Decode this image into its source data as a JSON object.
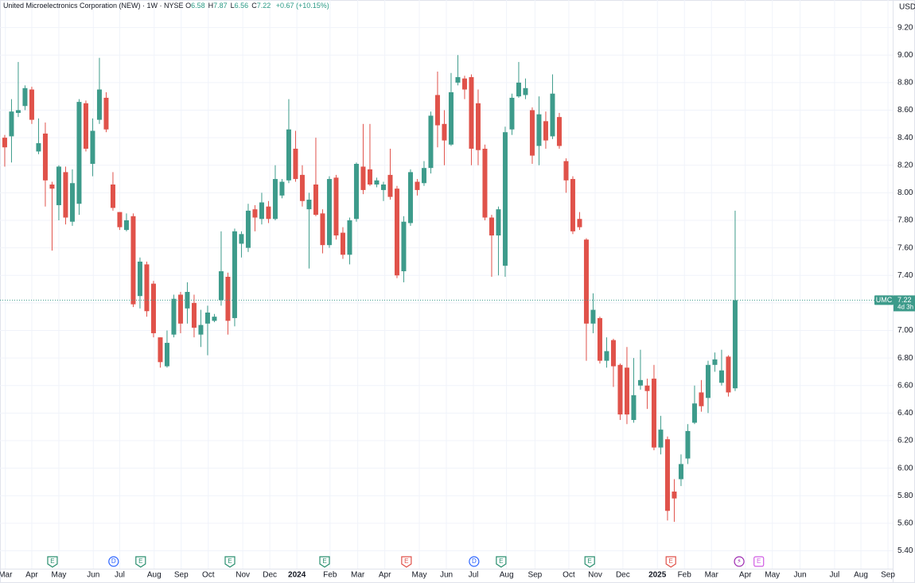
{
  "chart_data": {
    "type": "candlestick",
    "title": "United Microelectronics Corporation (NEW) · 1W · NYSE",
    "ohlc_labels": [
      "O",
      "H",
      "L",
      "C"
    ],
    "change_label": "+0.67 (+10.15%)",
    "currency": "USD",
    "symbol": "UMC",
    "countdown": "4d 3h",
    "up_color": "#3d9b8b",
    "down_color": "#e0524a",
    "grid": true,
    "last_price_line": true,
    "open": [
      8.4,
      8.41,
      8.58,
      8.63,
      8.75,
      8.3,
      8.43,
      8.06,
      7.91,
      8.15,
      7.79,
      7.92,
      8.65,
      8.21,
      8.53,
      8.69,
      8.06,
      7.86,
      7.73,
      7.83,
      7.25,
      7.48,
      7.34,
      6.95,
      6.74,
      6.97,
      7.26,
      7.16,
      7.2,
      6.97,
      7.05,
      7.07,
      7.22,
      7.39,
      7.09,
      7.63,
      7.6,
      7.88,
      7.81,
      7.9,
      7.81,
      7.98,
      8.09,
      8.32,
      8.13,
      7.88,
      8.06,
      7.85,
      7.62,
      8.11,
      7.71,
      7.55,
      7.81,
      8.19,
      8.17,
      8.06,
      8.02,
      8.13,
      8.03,
      7.43,
      7.78,
      8.08,
      8.07,
      8.18,
      8.71,
      8.5,
      8.35,
      8.8,
      8.83,
      8.84,
      8.65,
      8.32,
      7.82,
      7.69,
      7.47,
      8.46,
      8.7,
      8.71,
      8.6,
      8.34,
      8.52,
      8.41,
      8.55,
      8.23,
      8.1,
      7.81,
      7.66,
      7.05,
      7.09,
      6.78,
      6.93,
      6.75,
      6.73,
      6.35,
      6.6,
      6.6,
      6.65,
      6.15,
      6.21,
      5.83,
      5.92,
      6.07,
      6.33,
      6.55,
      6.51,
      6.75,
      6.62,
      6.81,
      6.58
    ],
    "high": [
      8.42,
      8.68,
      8.95,
      8.78,
      8.77,
      8.54,
      8.51,
      8.08,
      8.2,
      8.19,
      8.17,
      8.68,
      8.67,
      8.54,
      8.98,
      8.73,
      8.15,
      7.86,
      7.85,
      7.85,
      7.53,
      7.5,
      7.36,
      6.95,
      7.0,
      7.26,
      7.28,
      7.35,
      7.26,
      7.15,
      7.18,
      7.12,
      7.72,
      7.42,
      7.74,
      7.72,
      7.92,
      7.91,
      8.0,
      7.94,
      8.2,
      8.1,
      8.68,
      8.45,
      8.2,
      8.0,
      8.4,
      7.88,
      8.12,
      8.13,
      7.75,
      7.82,
      8.22,
      8.5,
      8.5,
      8.11,
      8.08,
      8.32,
      8.05,
      7.83,
      8.17,
      8.1,
      8.23,
      8.59,
      8.88,
      8.6,
      8.87,
      9.0,
      8.85,
      8.86,
      8.75,
      8.35,
      7.84,
      7.9,
      8.48,
      8.72,
      8.95,
      8.83,
      8.62,
      8.7,
      8.59,
      8.86,
      8.58,
      8.25,
      8.12,
      7.86,
      7.67,
      7.27,
      7.1,
      6.95,
      6.94,
      6.76,
      6.88,
      6.8,
      6.86,
      6.65,
      6.75,
      6.38,
      6.23,
      5.92,
      6.1,
      6.32,
      6.6,
      6.64,
      6.78,
      6.84,
      6.86,
      6.82,
      7.87
    ],
    "low": [
      8.19,
      8.22,
      8.55,
      8.6,
      8.5,
      8.28,
      7.9,
      7.58,
      7.8,
      7.77,
      7.76,
      7.84,
      8.3,
      8.12,
      8.5,
      8.44,
      7.87,
      7.73,
      7.72,
      7.17,
      7.16,
      7.1,
      6.95,
      6.73,
      6.73,
      6.95,
      6.98,
      7.05,
      6.95,
      6.88,
      6.82,
      7.06,
      7.18,
      6.97,
      7.03,
      7.53,
      7.57,
      7.72,
      7.77,
      7.78,
      7.8,
      7.96,
      8.07,
      8.08,
      7.9,
      7.45,
      7.83,
      7.56,
      7.6,
      7.66,
      7.52,
      7.48,
      7.79,
      7.99,
      8.05,
      8.04,
      7.94,
      7.95,
      7.38,
      7.35,
      7.76,
      7.98,
      8.05,
      8.14,
      8.33,
      8.2,
      8.34,
      8.78,
      8.68,
      8.2,
      8.2,
      7.8,
      7.39,
      7.4,
      7.39,
      8.42,
      8.69,
      8.68,
      8.21,
      8.2,
      8.32,
      8.39,
      8.32,
      8.0,
      7.7,
      7.73,
      6.78,
      6.98,
      6.76,
      6.73,
      6.59,
      6.35,
      6.32,
      6.33,
      6.57,
      6.43,
      6.13,
      6.1,
      5.62,
      5.61,
      5.87,
      6.03,
      6.32,
      6.41,
      6.4,
      6.7,
      6.6,
      6.52,
      6.56
    ],
    "close": [
      8.33,
      8.59,
      8.6,
      8.76,
      8.53,
      8.36,
      8.09,
      8.03,
      8.19,
      7.82,
      8.07,
      8.66,
      8.32,
      8.45,
      8.75,
      8.46,
      7.89,
      7.75,
      7.8,
      7.19,
      7.5,
      7.14,
      6.98,
      6.77,
      6.91,
      7.23,
      7.05,
      7.28,
      7.02,
      7.04,
      7.13,
      7.1,
      7.43,
      7.07,
      7.72,
      7.7,
      7.87,
      7.82,
      7.93,
      7.81,
      8.1,
      8.08,
      8.46,
      8.1,
      7.94,
      7.95,
      7.84,
      7.62,
      8.1,
      7.69,
      7.55,
      7.8,
      8.21,
      8.02,
      8.06,
      8.09,
      8.06,
      7.97,
      7.4,
      7.79,
      8.15,
      8.02,
      8.18,
      8.56,
      8.49,
      8.38,
      8.73,
      8.84,
      8.75,
      8.32,
      8.31,
      7.82,
      7.69,
      7.88,
      8.44,
      8.69,
      8.8,
      8.76,
      8.27,
      8.57,
      8.38,
      8.72,
      8.34,
      8.09,
      7.72,
      7.75,
      7.05,
      7.15,
      6.78,
      6.85,
      6.74,
      6.39,
      6.39,
      6.53,
      6.64,
      6.56,
      6.15,
      6.28,
      5.69,
      5.78,
      6.03,
      6.27,
      6.47,
      6.45,
      6.75,
      6.79,
      6.71,
      6.55,
      7.22
    ],
    "ylim": [
      5.27,
      9.4
    ],
    "yticks": [
      {
        "value": 5.4,
        "label": "5.40"
      },
      {
        "value": 5.6,
        "label": "5.60"
      },
      {
        "value": 5.8,
        "label": "5.80"
      },
      {
        "value": 6,
        "label": "6.00"
      },
      {
        "value": 6.2,
        "label": "6.20"
      },
      {
        "value": 6.4,
        "label": "6.40"
      },
      {
        "value": 6.6,
        "label": "6.60"
      },
      {
        "value": 6.8,
        "label": "6.80"
      },
      {
        "value": 7,
        "label": "7.00"
      },
      {
        "value": 7.2,
        "label": "7.20"
      },
      {
        "value": 7.4,
        "label": "7.40"
      },
      {
        "value": 7.6,
        "label": "7.60"
      },
      {
        "value": 7.8,
        "label": "7.80"
      },
      {
        "value": 8,
        "label": "8.00"
      },
      {
        "value": 8.2,
        "label": "8.20"
      },
      {
        "value": 8.4,
        "label": "8.40"
      },
      {
        "value": 8.6,
        "label": "8.60"
      },
      {
        "value": 8.8,
        "label": "8.80"
      },
      {
        "value": 9,
        "label": "9.00"
      },
      {
        "value": 9.2,
        "label": "9.20"
      }
    ],
    "xlim": [
      -0.7,
      131.3
    ],
    "xticks": [
      {
        "value": 0.1,
        "label": "Mar"
      },
      {
        "value": 4,
        "label": "Apr"
      },
      {
        "value": 8,
        "label": "May"
      },
      {
        "value": 13.1,
        "label": "Jun"
      },
      {
        "value": 17,
        "label": "Jul"
      },
      {
        "value": 22.1,
        "label": "Aug"
      },
      {
        "value": 26.1,
        "label": "Sep"
      },
      {
        "value": 30.1,
        "label": "Oct"
      },
      {
        "value": 35.2,
        "label": "Nov"
      },
      {
        "value": 39.2,
        "label": "Dec"
      },
      {
        "value": 43.2,
        "label": "2024",
        "bold": true
      },
      {
        "value": 48.1,
        "label": "Feb"
      },
      {
        "value": 52.2,
        "label": "Mar"
      },
      {
        "value": 56.2,
        "label": "Apr"
      },
      {
        "value": 61.3,
        "label": "May"
      },
      {
        "value": 65.3,
        "label": "Jun"
      },
      {
        "value": 69.3,
        "label": "Jul"
      },
      {
        "value": 74.2,
        "label": "Aug"
      },
      {
        "value": 78.4,
        "label": "Sep"
      },
      {
        "value": 83.4,
        "label": "Oct"
      },
      {
        "value": 87.3,
        "label": "Nov"
      },
      {
        "value": 91.4,
        "label": "Dec"
      },
      {
        "value": 96.5,
        "label": "2025",
        "bold": true
      },
      {
        "value": 100.5,
        "label": "Feb"
      },
      {
        "value": 104.5,
        "label": "Mar"
      },
      {
        "value": 109.5,
        "label": "Apr"
      },
      {
        "value": 113.5,
        "label": "May"
      },
      {
        "value": 117.6,
        "label": "Jun"
      },
      {
        "value": 122.7,
        "label": "Jul"
      },
      {
        "value": 126.6,
        "label": "Aug"
      },
      {
        "value": 130.6,
        "label": "Sep"
      }
    ],
    "events": [
      {
        "label": "E",
        "x": 7.06,
        "shape": "shield",
        "color": "#2a8f6f"
      },
      {
        "label": "D",
        "x": 16.1,
        "shape": "circle",
        "color": "#2962ff"
      },
      {
        "label": "E",
        "x": 20.1,
        "shape": "shield",
        "color": "#2a8f6f"
      },
      {
        "label": "E",
        "x": 33.3,
        "shape": "shield",
        "color": "#2a8f6f"
      },
      {
        "label": "E",
        "x": 47.3,
        "shape": "shield",
        "color": "#2a8f6f"
      },
      {
        "label": "E",
        "x": 59.4,
        "shape": "shield",
        "color": "#e0524a"
      },
      {
        "label": "D",
        "x": 69.4,
        "shape": "circle",
        "color": "#2962ff"
      },
      {
        "label": "E",
        "x": 73.4,
        "shape": "shield",
        "color": "#2a8f6f"
      },
      {
        "label": "E",
        "x": 86.5,
        "shape": "shield",
        "color": "#2a8f6f"
      },
      {
        "label": "E",
        "x": 98.5,
        "shape": "shield",
        "color": "#e0524a"
      },
      {
        "label": "⚡",
        "x": 108.6,
        "shape": "circle",
        "color": "#9c27b0"
      },
      {
        "label": "E",
        "x": 111.5,
        "shape": "square",
        "color": "#d05ce3"
      }
    ]
  }
}
